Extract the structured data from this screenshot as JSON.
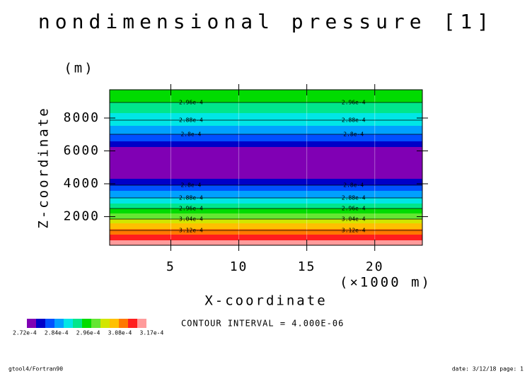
{
  "chart_data": {
    "type": "contour-bands",
    "title": "nondimensional pressure [1]",
    "y_unit": "(m)",
    "y_label": "Z-coordinate",
    "x_unit": "(×1000 m)",
    "x_label": "X-coordinate",
    "xlim": [
      0.5,
      23.5
    ],
    "xticks": [
      5,
      10,
      15,
      20
    ],
    "ylim": [
      260,
      9720
    ],
    "yticks": [
      2000,
      4000,
      6000,
      8000
    ],
    "bands": [
      {
        "from": 260,
        "to": 561,
        "color": "#ff9b9b"
      },
      {
        "from": 561,
        "to": 905,
        "color": "#ff1e1e"
      },
      {
        "from": 905,
        "to": 1250,
        "color": "#ff7800"
      },
      {
        "from": 1250,
        "to": 1593,
        "color": "#ffc000"
      },
      {
        "from": 1593,
        "to": 1851,
        "color": "#d2e600"
      },
      {
        "from": 1851,
        "to": 2195,
        "color": "#64e632"
      },
      {
        "from": 2195,
        "to": 2496,
        "color": "#00dc00"
      },
      {
        "from": 2496,
        "to": 2797,
        "color": "#00e68c"
      },
      {
        "from": 2797,
        "to": 3141,
        "color": "#00e6e6"
      },
      {
        "from": 3141,
        "to": 3571,
        "color": "#00a0ff"
      },
      {
        "from": 3571,
        "to": 3915,
        "color": "#0050ff"
      },
      {
        "from": 3915,
        "to": 4302,
        "color": "#0000c8"
      },
      {
        "from": 4302,
        "to": 6237,
        "color": "#8000b4"
      },
      {
        "from": 6237,
        "to": 6581,
        "color": "#0000c8"
      },
      {
        "from": 6581,
        "to": 7011,
        "color": "#0050ff"
      },
      {
        "from": 7011,
        "to": 7527,
        "color": "#00a0ff"
      },
      {
        "from": 7527,
        "to": 8301,
        "color": "#00e6e6"
      },
      {
        "from": 8301,
        "to": 8946,
        "color": "#00e68c"
      },
      {
        "from": 8946,
        "to": 9720,
        "color": "#00dc00"
      }
    ],
    "contours": [
      {
        "z": 1163,
        "label": "3.12e-4"
      },
      {
        "z": 1851,
        "label": "3.04e-4"
      },
      {
        "z": 2496,
        "label": "2.96e-4"
      },
      {
        "z": 3141,
        "label": "2.88e-4"
      },
      {
        "z": 3915,
        "label": "2.8e-4"
      },
      {
        "z": 7011,
        "label": "2.8e-4"
      },
      {
        "z": 7871,
        "label": "2.88e-4"
      },
      {
        "z": 8946,
        "label": "2.96e-4"
      }
    ],
    "contour_interval": "CONTOUR INTERVAL = 4.000E-06",
    "colorbar": {
      "colors": [
        "#8000b4",
        "#0000c8",
        "#0050ff",
        "#00a0ff",
        "#00e6e6",
        "#00e68c",
        "#00dc00",
        "#64e632",
        "#d2e600",
        "#ffc000",
        "#ff7800",
        "#ff1e1e",
        "#ff9b9b"
      ],
      "labels": [
        "2.72e-4",
        "2.84e-4",
        "2.96e-4",
        "3.08e-4",
        "3.17e-4"
      ]
    },
    "footer_left": "gtool4/Fortran90",
    "footer_right": "date: 3/12/18 page: 1"
  }
}
